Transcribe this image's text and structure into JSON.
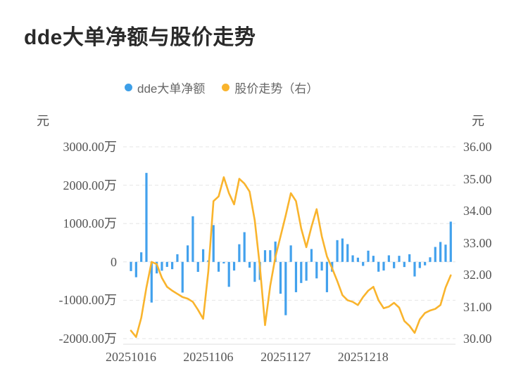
{
  "title": "dde大单净额与股价走势",
  "legend": [
    {
      "label": "dde大单净额",
      "color": "#3d9fe8"
    },
    {
      "label": "股价走势（右）",
      "color": "#f9b42d"
    }
  ],
  "axis_unit_left": "元",
  "axis_unit_right": "元",
  "chart_data": {
    "type": "bar+line",
    "x_tick_labels": [
      "20251016",
      "20251106",
      "20251127",
      "20251218"
    ],
    "x_tick_day_index": [
      0,
      15,
      30,
      45
    ],
    "left_axis": {
      "ticks": [
        "3000.00万",
        "2000.00万",
        "1000.00万",
        "0",
        "-1000.00万",
        "-2000.00万"
      ],
      "max_wan": 3000,
      "min_wan": -2000,
      "unit": "元"
    },
    "right_axis": {
      "ticks": [
        "36.00",
        "35.00",
        "34.00",
        "33.00",
        "32.00",
        "31.00",
        "30.00"
      ],
      "max": 36,
      "min": 30,
      "unit": "元"
    },
    "grid": {
      "dashed": true,
      "color": "#e5e5e5",
      "axis_line_color": "#dedede"
    },
    "series": [
      {
        "name": "dde大单净额",
        "type": "bar",
        "unit": "万元",
        "color": "#42a1ed",
        "values": [
          -240,
          -400,
          250,
          2320,
          -1060,
          -300,
          -230,
          -130,
          -190,
          200,
          -800,
          430,
          1190,
          -260,
          330,
          40,
          960,
          -256,
          -40,
          -650,
          -225,
          460,
          775,
          -150,
          -520,
          -470,
          305,
          305,
          530,
          -830,
          -1390,
          430,
          -790,
          -550,
          -490,
          335,
          -430,
          -225,
          -790,
          -256,
          567,
          610,
          463,
          171,
          110,
          -104,
          293,
          159,
          -256,
          -225,
          171,
          -165,
          159,
          -134,
          200,
          -380,
          -160,
          -90,
          120,
          390,
          520,
          450,
          1050
        ]
      },
      {
        "name": "股价走势（右）",
        "type": "line",
        "unit": "元",
        "color": "#f9b42d",
        "values": [
          30.25,
          30.05,
          30.65,
          31.6,
          32.4,
          32.33,
          31.9,
          31.62,
          31.5,
          31.4,
          31.3,
          31.25,
          31.15,
          30.9,
          30.62,
          32.1,
          34.3,
          34.45,
          35.05,
          34.55,
          34.2,
          35.0,
          34.85,
          34.6,
          33.7,
          32.25,
          30.42,
          31.65,
          32.55,
          33.2,
          33.85,
          34.55,
          34.3,
          33.45,
          32.86,
          33.5,
          34.05,
          33.2,
          32.57,
          32.2,
          31.8,
          31.36,
          31.2,
          31.15,
          31.05,
          31.3,
          31.5,
          31.62,
          31.2,
          30.95,
          31.0,
          31.12,
          30.97,
          30.55,
          30.4,
          30.18,
          30.6,
          30.8,
          30.88,
          30.93,
          31.05,
          31.6,
          31.98
        ]
      }
    ]
  }
}
